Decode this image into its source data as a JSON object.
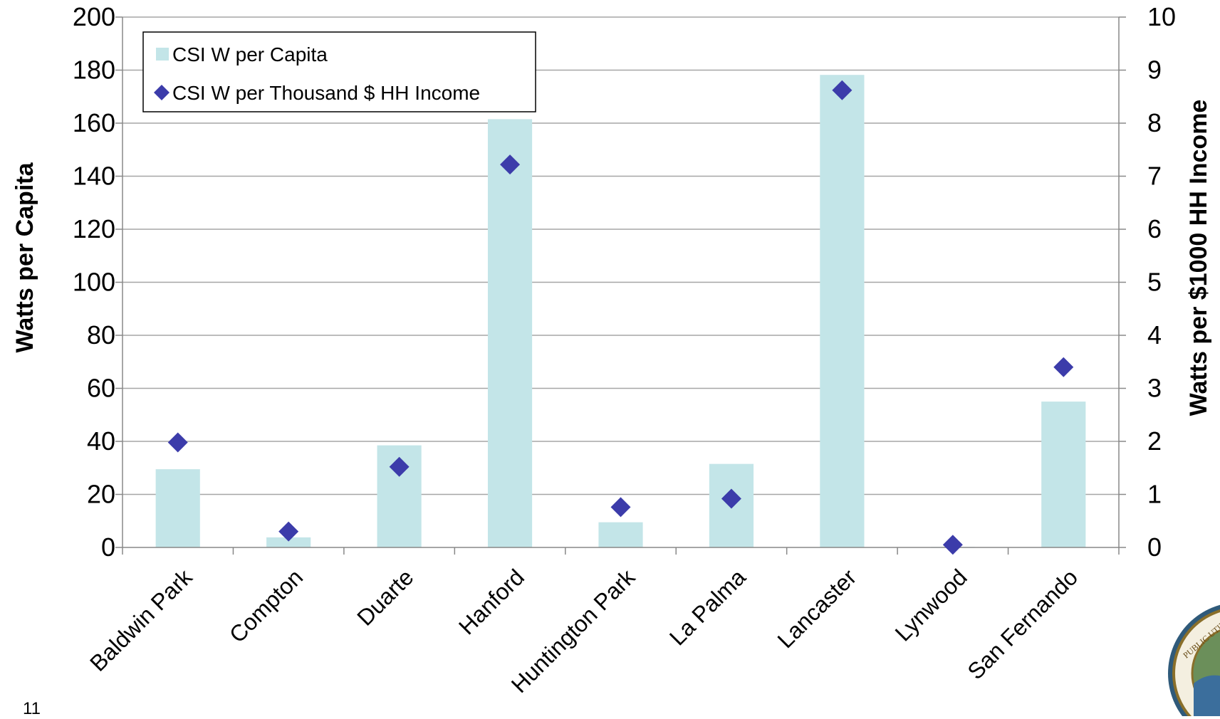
{
  "chart_data": {
    "type": "bar",
    "categories": [
      "Baldwin Park",
      "Compton",
      "Duarte",
      "Hanford",
      "Huntington Park",
      "La Palma",
      "Lancaster",
      "Lynwood",
      "San Fernando"
    ],
    "series": [
      {
        "name": "CSI W per Capita",
        "type": "bar",
        "axis": "left",
        "color": "#c3e5e8",
        "values": [
          29.5,
          3.8,
          38.5,
          161.5,
          9.5,
          31.5,
          178.2,
          0.2,
          55
        ]
      },
      {
        "name": "CSI W per Thousand $ HH Income",
        "type": "scatter",
        "marker": "diamond",
        "axis": "right",
        "color": "#3c3caa",
        "values": [
          1.98,
          0.3,
          1.52,
          7.22,
          0.76,
          0.92,
          8.62,
          0.05,
          3.4
        ]
      }
    ],
    "ylabel": "Watts per Capita",
    "y2label": "Watts per $1000 HH Income",
    "ylim": [
      0,
      200
    ],
    "y2lim": [
      0,
      10
    ],
    "yticks": [
      0,
      20,
      40,
      60,
      80,
      100,
      120,
      140,
      160,
      180,
      200
    ],
    "y2ticks": [
      0,
      1,
      2,
      3,
      4,
      5,
      6,
      7,
      8,
      9,
      10
    ],
    "grid": true,
    "legend_position": "top-left"
  },
  "page_number": "11",
  "logo": {
    "description": "seal",
    "text": "PUBLIC UTILITIES"
  }
}
